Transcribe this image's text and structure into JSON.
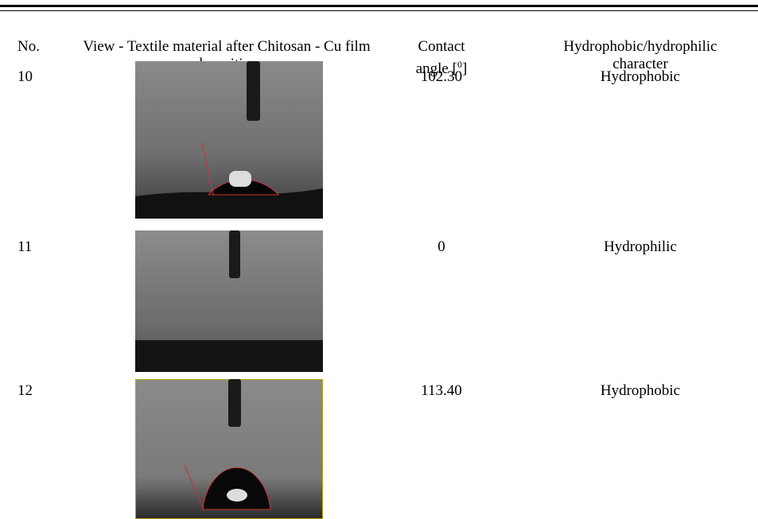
{
  "table": {
    "header": {
      "no": "No.",
      "view": "View - Textile material after Chitosan - Cu film deposition",
      "angle": {
        "text": "Contact angle [",
        "sup": "0",
        "end": "]"
      },
      "character": "Hydrophobic/hydrophilic character"
    },
    "rows": [
      {
        "no": "10",
        "angle": "102.30",
        "character": "Hydrophobic"
      },
      {
        "no": "11",
        "angle": "0",
        "character": "Hydrophilic"
      },
      {
        "no": "12",
        "angle": "113.40",
        "character": "Hydrophobic"
      }
    ]
  }
}
